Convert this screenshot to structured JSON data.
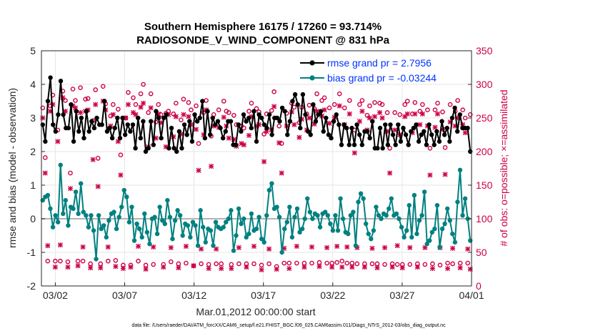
{
  "chart_data": {
    "type": "line",
    "title": "Southern Hemisphere 16175 / 17260 = 93.714%",
    "subtitle": "RADIOSONDE_V_WIND_COMPONENT @ 831 hPa",
    "ylabel": "rmse and bias (model - observation)",
    "y2label": "# of obs: o=possible; ×=assimilated",
    "xlabel": "Mar.01,2012 00:00:00 start",
    "footer": "data file: /Users/raeder/DAI/ATM_forcXX/CAM6_setup/f.e21.FHIST_BGC.f09_025.CAM6assim.011/Diags_NTrS_2012-03/obs_diag_output.nc",
    "ylim": [
      -2,
      5
    ],
    "y2lim": [
      0,
      350
    ],
    "xlim": [
      0,
      31
    ],
    "xtick_values": [
      1,
      6,
      11,
      16,
      21,
      26,
      31
    ],
    "xtick_labels": [
      "03/02",
      "03/07",
      "03/12",
      "03/17",
      "03/22",
      "03/27",
      "04/01"
    ],
    "ytick_labels": [
      "-2",
      "-1",
      "0",
      "1",
      "2",
      "3",
      "4",
      "5"
    ],
    "y2tick_labels": [
      "0",
      "50",
      "100",
      "150",
      "200",
      "250",
      "300",
      "350"
    ],
    "legend_position": "top-right",
    "series": [
      {
        "name": "rmse grand pr = 2.7956",
        "color": "#000000",
        "axis": "left",
        "values": [
          2.8,
          2.3,
          3.5,
          4.2,
          2.8,
          2.6,
          3.1,
          4.1,
          3.1,
          2.7,
          2.7,
          3.4,
          2.3,
          3.2,
          2.6,
          3.0,
          2.4,
          3.2,
          2.6,
          2.9,
          2.7,
          3.0,
          2.8,
          2.8,
          3.5,
          2.6,
          2.7,
          2.4,
          2.7,
          3.0,
          2.4,
          3.0,
          2.5,
          2.8,
          2.6,
          2.8,
          2.1,
          3.0,
          2.4,
          2.9,
          2.0,
          2.1,
          2.9,
          2.2,
          3.2,
          3.0,
          2.4,
          3.0,
          3.1,
          2.1,
          2.7,
          2.1,
          2.0,
          2.6,
          2.1,
          2.8,
          2.5,
          2.9,
          2.3,
          3.1,
          2.9,
          3.0,
          3.5,
          2.4,
          3.2,
          2.5,
          3.0,
          2.8,
          2.9,
          2.7,
          2.4,
          2.6,
          2.9,
          2.9,
          2.2,
          2.2,
          2.8,
          2.6,
          3.1,
          2.9,
          3.0,
          2.7,
          3.2,
          2.3,
          3.1,
          3.0,
          2.8,
          2.7,
          3.1,
          2.5,
          3.0,
          3.0,
          2.9,
          3.3,
          3.2,
          2.5,
          2.9,
          3.5,
          3.7,
          3.4,
          2.7,
          3.7,
          3.1,
          2.6,
          2.5,
          3.4,
          2.9,
          3.1,
          3.2,
          2.6,
          3.0,
          2.5,
          2.4,
          2.9,
          3.1,
          2.8,
          2.2,
          2.8,
          2.7,
          2.2,
          2.7,
          2.2,
          2.8,
          2.5,
          2.2,
          2.6,
          2.6,
          2.4,
          2.9,
          2.1,
          2.1,
          2.7,
          2.1,
          2.8,
          2.2,
          2.8,
          2.5,
          2.2,
          2.8,
          2.3,
          2.7,
          2.5,
          2.2,
          2.6,
          2.7,
          2.8,
          2.3,
          2.5,
          2.6,
          2.2,
          2.8,
          2.5,
          2.2,
          2.6,
          2.3,
          2.9,
          2.5,
          2.7,
          2.3,
          3.0,
          3.3,
          2.6,
          3.1,
          2.7,
          2.7,
          2.7,
          2.0
        ]
      },
      {
        "name": "bias grand pr = -0.03244",
        "color": "#008080",
        "axis": "left",
        "values": [
          0.55,
          0.65,
          0.7,
          0.3,
          -0.25,
          0.1,
          -0.1,
          1.6,
          0.15,
          0.55,
          -0.2,
          0.35,
          0.3,
          0.8,
          0.15,
          1.05,
          0.2,
          0.1,
          -0.25,
          0.1,
          -0.35,
          -1.2,
          0.1,
          -0.3,
          -0.2,
          -0.55,
          -0.05,
          0.15,
          0.2,
          -0.3,
          0.05,
          0.35,
          0.85,
          0.65,
          -0.1,
          0.35,
          -0.65,
          -0.15,
          -0.3,
          -0.55,
          0.15,
          -0.4,
          -0.75,
          0.0,
          0.05,
          -0.45,
          0.35,
          -0.05,
          -0.15,
          0.55,
          0.05,
          -0.6,
          -0.05,
          0.25,
          0.1,
          -0.5,
          -0.15,
          -0.2,
          -0.55,
          -0.1,
          -0.2,
          -0.8,
          0.25,
          -0.25,
          -0.7,
          -0.3,
          -0.35,
          -0.8,
          -0.1,
          -0.25,
          -0.3,
          -0.25,
          -0.1,
          0.0,
          0.25,
          -0.95,
          -0.5,
          0.3,
          -0.15,
          0.0,
          -0.55,
          -0.45,
          0.15,
          -0.35,
          -0.3,
          0.05,
          -0.6,
          -0.7,
          0.1,
          0.85,
          1.05,
          0.3,
          0.35,
          0.05,
          -1.0,
          -0.3,
          -0.1,
          0.35,
          -0.55,
          0.05,
          0.3,
          -0.4,
          -0.3,
          0.0,
          0.6,
          0.2,
          0.0,
          0.15,
          0.1,
          -0.25,
          0.15,
          0.2,
          0.1,
          -0.15,
          -0.35,
          0.1,
          -0.35,
          0.6,
          0.0,
          -0.4,
          -0.45,
          0.1,
          0.2,
          -0.8,
          0.5,
          0.75,
          0.6,
          -0.15,
          -0.45,
          -0.6,
          -0.35,
          0.35,
          0.1,
          0.0,
          0.15,
          0.1,
          0.3,
          0.6,
          0.1,
          0.15,
          0.0,
          -0.25,
          -0.55,
          -0.35,
          0.4,
          -0.55,
          0.7,
          -0.45,
          -0.05,
          0.1,
          0.8,
          -0.75,
          -0.65,
          -0.4,
          -0.3,
          0.4,
          -0.85,
          -0.3,
          -0.15,
          0.3,
          -0.05,
          -0.45,
          -0.7,
          0.5,
          1.45,
          0.1,
          0.6,
          0.0,
          -0.65
        ]
      },
      {
        "name": "# obs possible",
        "color": "#cc0044",
        "axis": "right",
        "marker": "o",
        "values": [
          265,
          191,
          37,
          268,
          284,
          37,
          232,
          37,
          290,
          276,
          36,
          168,
          293,
          276,
          37,
          295,
          37,
          278,
          279,
          33,
          246,
          292,
          190,
          33,
          297,
          271,
          37,
          253,
          270,
          38,
          263,
          195,
          31,
          250,
          288,
          31,
          280,
          270,
          37,
          286,
          300,
          31,
          258,
          286,
          32,
          244,
          270,
          255,
          32,
          257,
          260,
          36,
          256,
          272,
          33,
          247,
          278,
          34,
          273,
          262,
          30,
          268,
          212,
          33,
          258,
          276,
          32,
          223,
          255,
          33,
          262,
          33,
          275,
          260,
          258,
          32,
          254,
          240,
          33,
          238,
          235,
          33,
          260,
          272,
          33,
          264,
          259,
          31,
          226,
          256,
          33,
          261,
          289,
          29,
          238,
          212,
          34,
          257,
          34,
          272,
          266,
          34,
          243,
          266,
          34,
          256,
          269,
          34,
          264,
          286,
          35,
          276,
          280,
          34,
          265,
          34,
          270,
          35,
          286,
          37,
          265,
          34,
          276,
          34,
          232,
          33,
          270,
          276,
          33,
          254,
          268,
          33,
          273,
          33,
          272,
          270,
          32,
          258,
          205,
          33,
          258,
          32,
          255,
          32,
          270,
          275,
          32,
          256,
          273,
          33,
          260,
          270,
          32,
          262,
          205,
          33,
          262,
          272,
          31,
          259,
          206,
          34,
          270,
          33,
          260,
          276,
          34,
          262,
          250,
          34,
          255
        ]
      },
      {
        "name": "# obs assimilated",
        "color": "#cc0044",
        "axis": "right",
        "marker": "x",
        "values": [
          250,
          168,
          60,
          260,
          270,
          28,
          215,
          61,
          280,
          260,
          28,
          145,
          268,
          265,
          30,
          258,
          58,
          260,
          262,
          27,
          188,
          270,
          148,
          27,
          275,
          262,
          58,
          238,
          255,
          29,
          215,
          165,
          26,
          250,
          270,
          28,
          258,
          255,
          59,
          266,
          272,
          25,
          207,
          265,
          58,
          220,
          256,
          243,
          28,
          207,
          255,
          57,
          222,
          252,
          27,
          226,
          255,
          59,
          252,
          240,
          30,
          233,
          172,
          55,
          225,
          262,
          26,
          178,
          238,
          55,
          236,
          26,
          251,
          238,
          220,
          26,
          218,
          208,
          57,
          212,
          210,
          28,
          224,
          252,
          59,
          238,
          240,
          24,
          185,
          230,
          55,
          232,
          267,
          25,
          213,
          168,
          56,
          238,
          26,
          259,
          240,
          59,
          221,
          248,
          28,
          232,
          250,
          58,
          241,
          260,
          29,
          253,
          262,
          57,
          242,
          28,
          251,
          59,
          268,
          28,
          240,
          58,
          256,
          28,
          198,
          57,
          245,
          260,
          28,
          232,
          250,
          56,
          252,
          27,
          258,
          250,
          57,
          230,
          168,
          28,
          232,
          60,
          225,
          27,
          252,
          256,
          57,
          228,
          256,
          28,
          240,
          256,
          57,
          238,
          165,
          26,
          236,
          256,
          57,
          233,
          166,
          26,
          244,
          56,
          238,
          250,
          27,
          240,
          228,
          55,
          25
        ]
      }
    ]
  }
}
